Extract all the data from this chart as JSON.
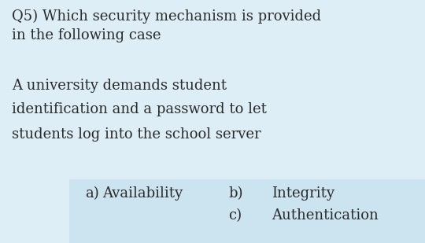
{
  "bg_color": "#ddeef6",
  "answer_box_color": "#cce4f0",
  "question_line1": "Q5) Which security mechanism is provided",
  "question_line2": "in the following case",
  "scenario_line1": "A university demands student",
  "scenario_line2": "identification and a password to let",
  "scenario_line3": "students log into the school server",
  "answer_a_label": "a)",
  "answer_a_text": "Availability",
  "answer_b_label": "b)",
  "answer_b_text": "Integrity",
  "answer_c_label": "c)",
  "answer_c_text": "Authentication",
  "font_size": 13.0,
  "text_color": "#2a2a2a",
  "font_family": "DejaVu Serif",
  "fig_width": 5.4,
  "fig_height": 3.09,
  "dpi": 100
}
